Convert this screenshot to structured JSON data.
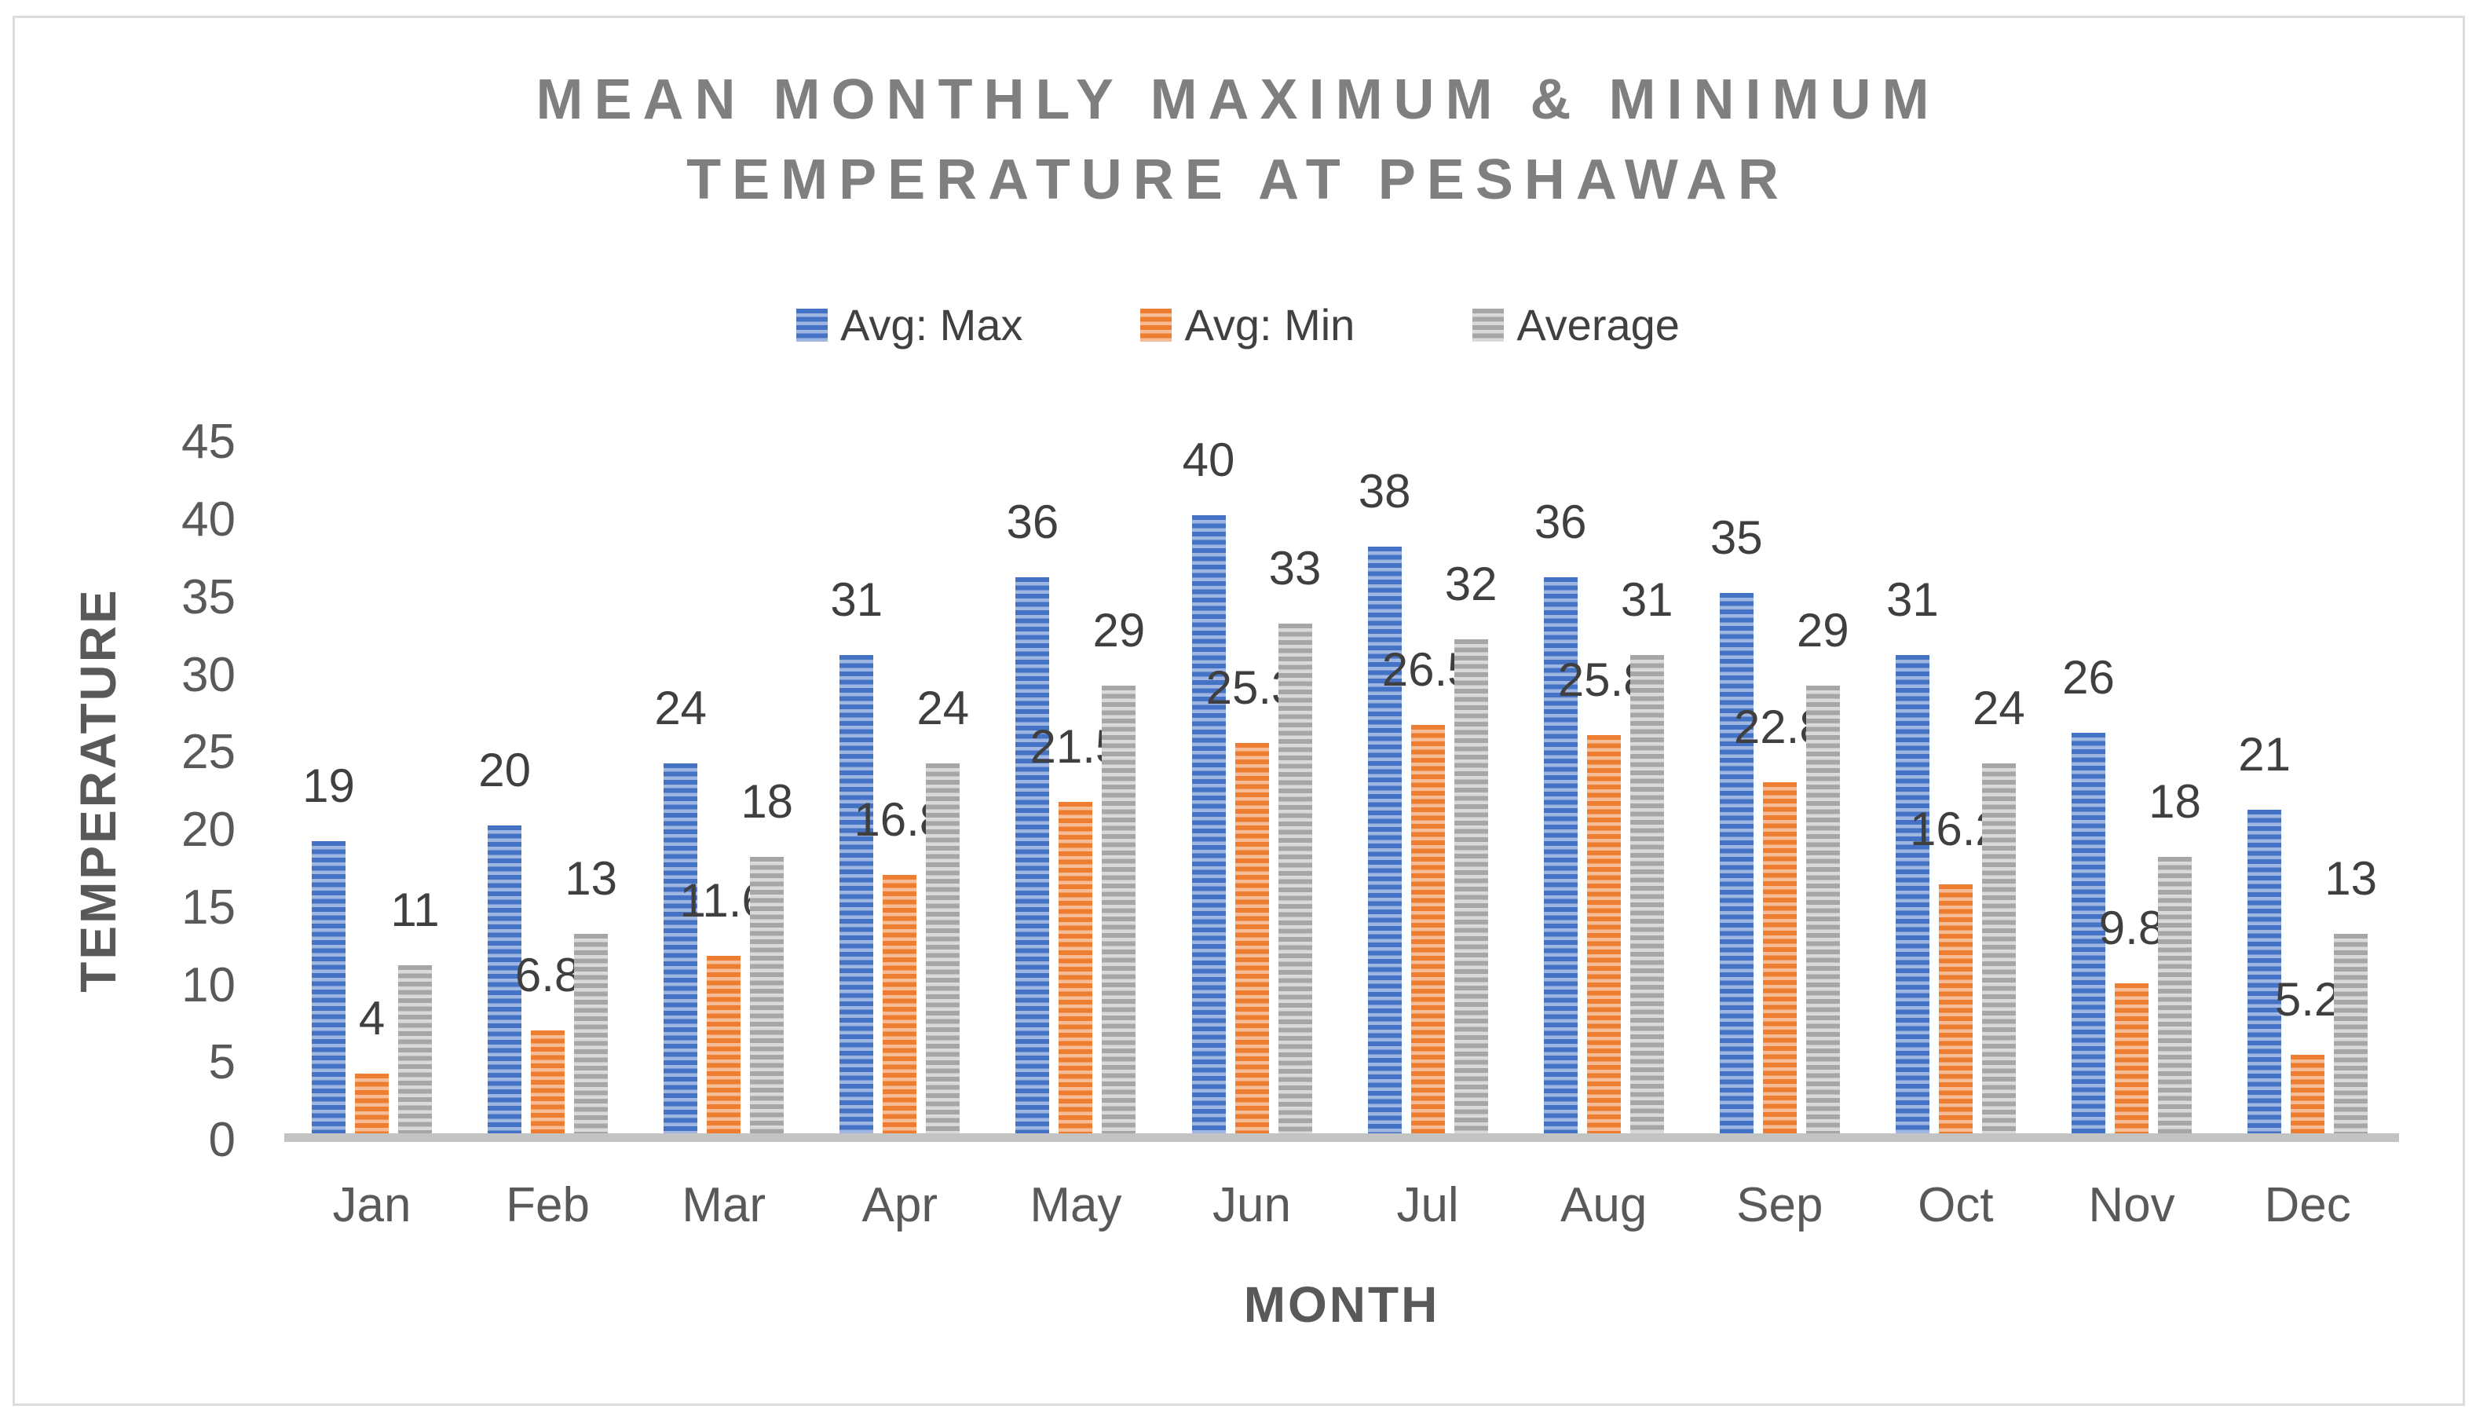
{
  "chart_data": {
    "type": "bar",
    "title_lines": [
      "MEAN MONTHLY MAXIMUM & MINIMUM",
      "TEMPERATURE AT PESHAWAR"
    ],
    "title_color": "#7f7f7f",
    "categories": [
      "Jan",
      "Feb",
      "Mar",
      "Apr",
      "May",
      "Jun",
      "Jul",
      "Aug",
      "Sep",
      "Oct",
      "Nov",
      "Dec"
    ],
    "series": [
      {
        "name": "Avg: Max",
        "color": "#4472C4",
        "stripe_color": "#9FB6E2",
        "values": [
          19,
          20,
          24,
          31,
          36,
          40,
          38,
          36,
          35,
          31,
          26,
          21
        ]
      },
      {
        "name": "Avg: Min",
        "color": "#ED7D31",
        "stripe_color": "#F5BC95",
        "values": [
          4,
          6.8,
          11.6,
          16.8,
          21.5,
          25.3,
          26.5,
          25.8,
          22.8,
          16.2,
          9.8,
          5.2
        ]
      },
      {
        "name": "Average",
        "color": "#A6A6A6",
        "stripe_color": "#D9D9D9",
        "values": [
          11,
          13,
          18,
          24,
          29,
          33,
          32,
          31,
          29,
          24,
          18,
          13
        ]
      }
    ],
    "xlabel": "MONTH",
    "ylabel": "TEMPERATURE",
    "y_ticks": [
      0,
      5,
      10,
      15,
      20,
      25,
      30,
      35,
      40,
      45
    ],
    "ylim": [
      0,
      45
    ],
    "grid": false,
    "legend_position": "top",
    "data_labels": true,
    "axis_line_color": "#c3c3c3",
    "tick_label_color": "#595959",
    "data_label_color": "#3f3f3f"
  }
}
